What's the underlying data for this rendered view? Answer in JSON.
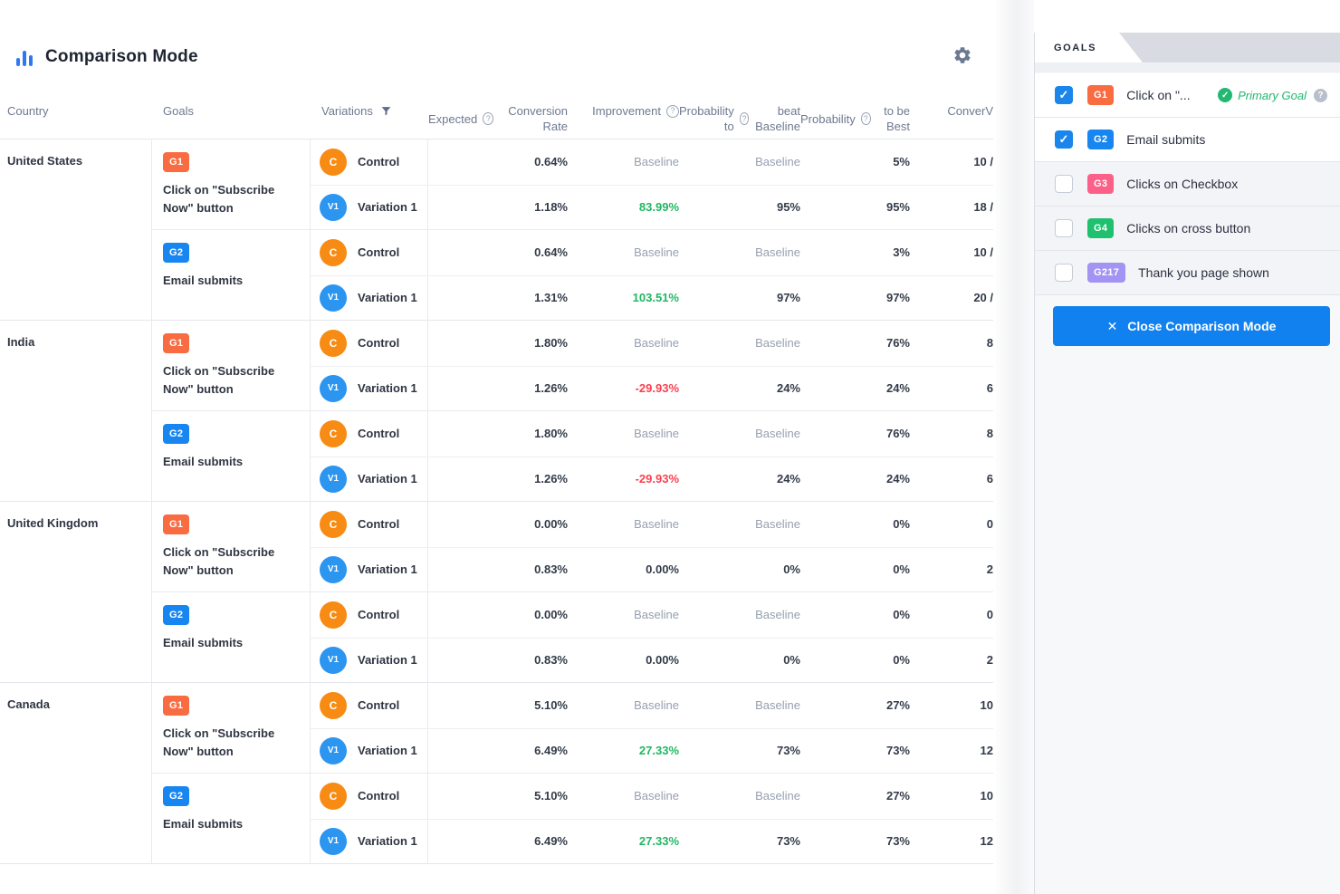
{
  "app": {
    "title": "Comparison Mode"
  },
  "icons": {
    "check": "✓",
    "close": "✕",
    "help": "?"
  },
  "badge_colors": {
    "orange": "#f96b41",
    "blue": "#1886f0",
    "pink": "#fb6088",
    "green": "#1fc06e",
    "purple": "#a393f2",
    "control": "#f78b13",
    "variation": "#2b95f0"
  },
  "table": {
    "headers": {
      "country": "Country",
      "goals": "Goals",
      "variations": "Variations",
      "ecr_line1": "Expected",
      "ecr_line2": "Conversion Rate",
      "improvement": "Improvement",
      "prob_beat_line1": "Probability to",
      "prob_beat_line2": "beat Baseline",
      "prob_best_line1": "Probability",
      "prob_best_line2": "to be Best",
      "conversions_line1": "Conver",
      "conversions_line2": "V"
    },
    "countries": [
      {
        "name": "United States",
        "goals": [
          {
            "id": "G1",
            "badge": "orange",
            "label": "Click on \"Subscribe Now\" button",
            "rows": [
              {
                "id": "C",
                "name": "Control",
                "ecr": "0.64%",
                "improvement": "Baseline",
                "imp_type": "baseline",
                "prob_beat": "Baseline",
                "prob_best": "5%",
                "conversions": "10 /"
              },
              {
                "id": "V1",
                "name": "Variation 1",
                "ecr": "1.18%",
                "improvement": "83.99%",
                "imp_type": "positive",
                "prob_beat": "95%",
                "prob_best": "95%",
                "conversions": "18 /"
              }
            ]
          },
          {
            "id": "G2",
            "badge": "blue",
            "label": "Email submits",
            "rows": [
              {
                "id": "C",
                "name": "Control",
                "ecr": "0.64%",
                "improvement": "Baseline",
                "imp_type": "baseline",
                "prob_beat": "Baseline",
                "prob_best": "3%",
                "conversions": "10 /"
              },
              {
                "id": "V1",
                "name": "Variation 1",
                "ecr": "1.31%",
                "improvement": "103.51%",
                "imp_type": "positive",
                "prob_beat": "97%",
                "prob_best": "97%",
                "conversions": "20 /"
              }
            ]
          }
        ]
      },
      {
        "name": "India",
        "goals": [
          {
            "id": "G1",
            "badge": "orange",
            "label": "Click on \"Subscribe Now\" button",
            "rows": [
              {
                "id": "C",
                "name": "Control",
                "ecr": "1.80%",
                "improvement": "Baseline",
                "imp_type": "baseline",
                "prob_beat": "Baseline",
                "prob_best": "76%",
                "conversions": "8"
              },
              {
                "id": "V1",
                "name": "Variation 1",
                "ecr": "1.26%",
                "improvement": "-29.93%",
                "imp_type": "negative",
                "prob_beat": "24%",
                "prob_best": "24%",
                "conversions": "6"
              }
            ]
          },
          {
            "id": "G2",
            "badge": "blue",
            "label": "Email submits",
            "rows": [
              {
                "id": "C",
                "name": "Control",
                "ecr": "1.80%",
                "improvement": "Baseline",
                "imp_type": "baseline",
                "prob_beat": "Baseline",
                "prob_best": "76%",
                "conversions": "8"
              },
              {
                "id": "V1",
                "name": "Variation 1",
                "ecr": "1.26%",
                "improvement": "-29.93%",
                "imp_type": "negative",
                "prob_beat": "24%",
                "prob_best": "24%",
                "conversions": "6"
              }
            ]
          }
        ]
      },
      {
        "name": "United Kingdom",
        "goals": [
          {
            "id": "G1",
            "badge": "orange",
            "label": "Click on \"Subscribe Now\" button",
            "rows": [
              {
                "id": "C",
                "name": "Control",
                "ecr": "0.00%",
                "improvement": "Baseline",
                "imp_type": "baseline",
                "prob_beat": "Baseline",
                "prob_best": "0%",
                "conversions": "0"
              },
              {
                "id": "V1",
                "name": "Variation 1",
                "ecr": "0.83%",
                "improvement": "0.00%",
                "imp_type": "neutral",
                "prob_beat": "0%",
                "prob_best": "0%",
                "conversions": "2"
              }
            ]
          },
          {
            "id": "G2",
            "badge": "blue",
            "label": "Email submits",
            "rows": [
              {
                "id": "C",
                "name": "Control",
                "ecr": "0.00%",
                "improvement": "Baseline",
                "imp_type": "baseline",
                "prob_beat": "Baseline",
                "prob_best": "0%",
                "conversions": "0"
              },
              {
                "id": "V1",
                "name": "Variation 1",
                "ecr": "0.83%",
                "improvement": "0.00%",
                "imp_type": "neutral",
                "prob_beat": "0%",
                "prob_best": "0%",
                "conversions": "2"
              }
            ]
          }
        ]
      },
      {
        "name": "Canada",
        "goals": [
          {
            "id": "G1",
            "badge": "orange",
            "label": "Click on \"Subscribe Now\" button",
            "rows": [
              {
                "id": "C",
                "name": "Control",
                "ecr": "5.10%",
                "improvement": "Baseline",
                "imp_type": "baseline",
                "prob_beat": "Baseline",
                "prob_best": "27%",
                "conversions": "10"
              },
              {
                "id": "V1",
                "name": "Variation 1",
                "ecr": "6.49%",
                "improvement": "27.33%",
                "imp_type": "positive",
                "prob_beat": "73%",
                "prob_best": "73%",
                "conversions": "12"
              }
            ]
          },
          {
            "id": "G2",
            "badge": "blue",
            "label": "Email submits",
            "rows": [
              {
                "id": "C",
                "name": "Control",
                "ecr": "5.10%",
                "improvement": "Baseline",
                "imp_type": "baseline",
                "prob_beat": "Baseline",
                "prob_best": "27%",
                "conversions": "10"
              },
              {
                "id": "V1",
                "name": "Variation 1",
                "ecr": "6.49%",
                "improvement": "27.33%",
                "imp_type": "positive",
                "prob_beat": "73%",
                "prob_best": "73%",
                "conversions": "12"
              }
            ]
          }
        ]
      }
    ]
  },
  "panel": {
    "tab": "GOALS",
    "goals": [
      {
        "id": "G1",
        "badge": "orange",
        "label": "Click on \"...",
        "checked": true,
        "primary_label": "Primary Goal",
        "has_help": true
      },
      {
        "id": "G2",
        "badge": "blue",
        "label": "Email submits",
        "checked": true
      },
      {
        "id": "G3",
        "badge": "pink",
        "label": "Clicks on Checkbox",
        "checked": false
      },
      {
        "id": "G4",
        "badge": "green",
        "label": "Clicks on cross button",
        "checked": false
      },
      {
        "id": "G217",
        "badge": "purple",
        "label": "Thank you page shown",
        "checked": false
      }
    ],
    "close_button": {
      "label": "Close Comparison Mode"
    }
  }
}
